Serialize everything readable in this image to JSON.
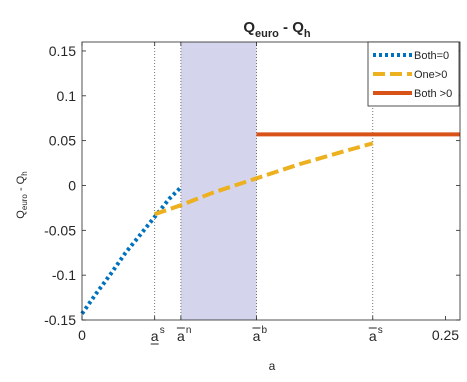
{
  "chart_data": {
    "type": "line",
    "title": "Q_euro - Q_h",
    "title_parts": {
      "base1": "Q",
      "sub1": "euro",
      "mid": " - Q",
      "sub2": "h"
    },
    "ylabel_parts": {
      "base1": "Q",
      "sub1": "euro",
      "mid": " - Q",
      "sub2": "h"
    },
    "xlabel": "a",
    "xlim": [
      0,
      0.26
    ],
    "ylim": [
      -0.15,
      0.16
    ],
    "y_ticks": [
      -0.15,
      -0.1,
      -0.05,
      0,
      0.05,
      0.1,
      0.15
    ],
    "y_tick_labels": [
      "-0.15",
      "-0.1",
      "-0.05",
      "0",
      "0.05",
      "0.1",
      "0.15"
    ],
    "x_ticks": [
      {
        "value": 0,
        "label": "0",
        "kind": "plain"
      },
      {
        "value": 0.05,
        "label": "a",
        "sup": "s",
        "kind": "underline"
      },
      {
        "value": 0.068,
        "label": "a",
        "sup": "n",
        "kind": "overline"
      },
      {
        "value": 0.12,
        "label": "a",
        "sup": "b",
        "kind": "overline"
      },
      {
        "value": 0.2,
        "label": "a",
        "sup": "s",
        "kind": "overline"
      },
      {
        "value": 0.25,
        "label": "0.25",
        "kind": "plain"
      }
    ],
    "vlines": [
      0.05,
      0.068,
      0.12,
      0.2
    ],
    "shaded_region": {
      "from": 0.068,
      "to": 0.12,
      "color": "#d4d4ec"
    },
    "grid": false,
    "legend_position": "top-right",
    "series": [
      {
        "name": "Both=0",
        "color": "#0072bd",
        "style": "dotted",
        "x": [
          0,
          0.01,
          0.02,
          0.03,
          0.04,
          0.05,
          0.06,
          0.068
        ],
        "y": [
          -0.143,
          -0.12,
          -0.098,
          -0.075,
          -0.055,
          -0.035,
          -0.015,
          -0.002
        ]
      },
      {
        "name": "One>0",
        "color": "#edb120",
        "style": "dashed",
        "x": [
          0.05,
          0.068,
          0.09,
          0.12,
          0.15,
          0.18,
          0.2
        ],
        "y": [
          -0.032,
          -0.022,
          -0.008,
          0.008,
          0.024,
          0.038,
          0.047
        ]
      },
      {
        "name": "Both >0",
        "color": "#d95319",
        "style": "solid",
        "x": [
          0.12,
          0.26
        ],
        "y": [
          0.057,
          0.057
        ]
      }
    ]
  }
}
